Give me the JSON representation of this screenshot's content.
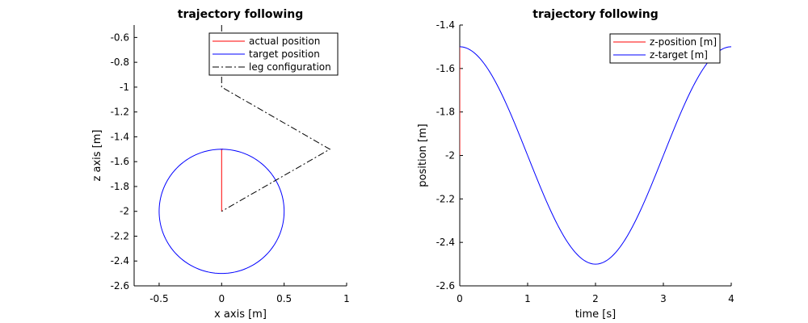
{
  "chart_data": [
    {
      "type": "line",
      "title": "trajectory following",
      "xlabel": "x axis [m]",
      "ylabel": "z axis [m]",
      "xlim": [
        -0.7,
        1.0
      ],
      "ylim": [
        -2.6,
        -0.5
      ],
      "xticks": [
        -0.5,
        0,
        0.5,
        1
      ],
      "xtick_labels": [
        "-0.5",
        "0",
        "0.5",
        "1"
      ],
      "yticks": [
        -0.6,
        -0.8,
        -1.0,
        -1.2,
        -1.4,
        -1.6,
        -1.8,
        -2.0,
        -2.2,
        -2.4,
        -2.6
      ],
      "ytick_labels": [
        "-0.6",
        "-0.8",
        "-1",
        "-1.2",
        "-1.4",
        "-1.6",
        "-1.8",
        "-2",
        "-2.2",
        "-2.4",
        "-2.6"
      ],
      "grid": false,
      "legend_position": "top-right",
      "series": [
        {
          "name": "actual position",
          "color": "#ff0000",
          "style": "solid",
          "x": [
            0.0,
            0.0,
            0.01
          ],
          "y": [
            -2.0,
            -1.5,
            -1.5
          ]
        },
        {
          "name": "target position",
          "color": "#0000ff",
          "style": "solid",
          "shape": "circle",
          "center": [
            0.0,
            -2.0
          ],
          "radius": 0.5
        },
        {
          "name": "leg configuration",
          "color": "#000000",
          "style": "dash-dot",
          "x": [
            0.0,
            0.0,
            0.866,
            0.0
          ],
          "y": [
            -0.5,
            -1.0,
            -1.5,
            -2.0
          ]
        }
      ]
    },
    {
      "type": "line",
      "title": "trajectory following",
      "xlabel": "time [s]",
      "ylabel": "position [m]",
      "xlim": [
        0,
        4
      ],
      "ylim": [
        -2.6,
        -1.4
      ],
      "xticks": [
        0,
        1,
        2,
        3,
        4
      ],
      "xtick_labels": [
        "0",
        "1",
        "2",
        "3",
        "4"
      ],
      "yticks": [
        -1.4,
        -1.6,
        -1.8,
        -2.0,
        -2.2,
        -2.4,
        -2.6
      ],
      "ytick_labels": [
        "-1.4",
        "-1.6",
        "-1.8",
        "-2",
        "-2.2",
        "-2.4",
        "-2.6"
      ],
      "grid": false,
      "legend_position": "top-right",
      "series": [
        {
          "name": "z-position [m]",
          "color": "#ff0000",
          "style": "solid",
          "x": [
            0.0,
            0.0
          ],
          "y": [
            -2.0,
            -1.5
          ]
        },
        {
          "name": "z-target [m]",
          "color": "#0000ff",
          "style": "solid",
          "function": "cosine",
          "offset": -2.0,
          "amplitude": 0.5,
          "period": 4.0,
          "x": [
            0.0,
            0.25,
            0.5,
            0.75,
            1.0,
            1.25,
            1.5,
            1.75,
            2.0,
            2.25,
            2.5,
            2.75,
            3.0,
            3.25,
            3.5,
            3.75,
            4.0
          ],
          "y": [
            -1.5,
            -1.538,
            -1.646,
            -1.809,
            -2.0,
            -2.191,
            -2.354,
            -2.462,
            -2.5,
            -2.462,
            -2.354,
            -2.191,
            -2.0,
            -1.809,
            -1.646,
            -1.538,
            -1.5
          ]
        }
      ]
    }
  ]
}
